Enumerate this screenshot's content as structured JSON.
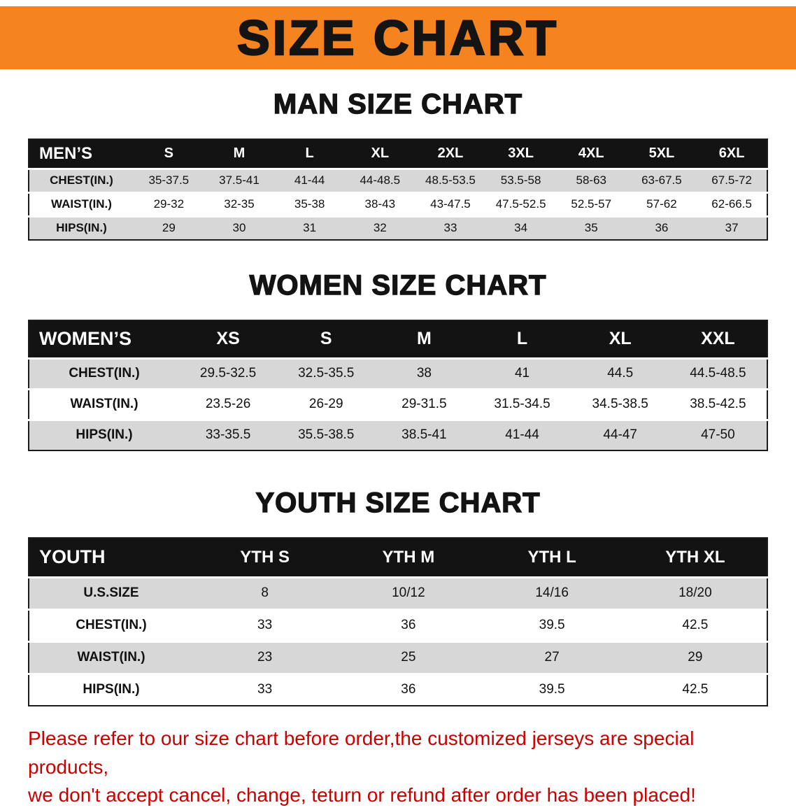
{
  "banner": {
    "title": "SIZE CHART"
  },
  "colors": {
    "banner_bg": "#f5831f",
    "header_bg": "#131313",
    "stripe": "#d7d7d7",
    "footer_red": "#c90000"
  },
  "men": {
    "heading": "MAN SIZE CHART",
    "label": "MEN’S",
    "columns": [
      "S",
      "M",
      "L",
      "XL",
      "2XL",
      "3XL",
      "4XL",
      "5XL",
      "6XL"
    ],
    "rows": [
      {
        "label": "CHEST(IN.)",
        "values": [
          "35-37.5",
          "37.5-41",
          "41-44",
          "44-48.5",
          "48.5-53.5",
          "53.5-58",
          "58-63",
          "63-67.5",
          "67.5-72"
        ]
      },
      {
        "label": "WAIST(IN.)",
        "values": [
          "29-32",
          "32-35",
          "35-38",
          "38-43",
          "43-47.5",
          "47.5-52.5",
          "52.5-57",
          "57-62",
          "62-66.5"
        ]
      },
      {
        "label": "HIPS(IN.)",
        "values": [
          "29",
          "30",
          "31",
          "32",
          "33",
          "34",
          "35",
          "36",
          "37"
        ]
      }
    ]
  },
  "women": {
    "heading": "WOMEN SIZE CHART",
    "label": "WOMEN’S",
    "columns": [
      "XS",
      "S",
      "M",
      "L",
      "XL",
      "XXL"
    ],
    "rows": [
      {
        "label": "CHEST(IN.)",
        "values": [
          "29.5-32.5",
          "32.5-35.5",
          "38",
          "41",
          "44.5",
          "44.5-48.5"
        ]
      },
      {
        "label": "WAIST(IN.)",
        "values": [
          "23.5-26",
          "26-29",
          "29-31.5",
          "31.5-34.5",
          "34.5-38.5",
          "38.5-42.5"
        ]
      },
      {
        "label": "HIPS(IN.)",
        "values": [
          "33-35.5",
          "35.5-38.5",
          "38.5-41",
          "41-44",
          "44-47",
          "47-50"
        ]
      }
    ]
  },
  "youth": {
    "heading": "YOUTH SIZE CHART",
    "label": "YOUTH",
    "columns": [
      "YTH S",
      "YTH M",
      "YTH L",
      "YTH XL"
    ],
    "rows": [
      {
        "label": "U.S.SIZE",
        "values": [
          "8",
          "10/12",
          "14/16",
          "18/20"
        ]
      },
      {
        "label": "CHEST(IN.)",
        "values": [
          "33",
          "36",
          "39.5",
          "42.5"
        ]
      },
      {
        "label": "WAIST(IN.)",
        "values": [
          "23",
          "25",
          "27",
          "29"
        ]
      },
      {
        "label": "HIPS(IN.)",
        "values": [
          "33",
          "36",
          "39.5",
          "42.5"
        ]
      }
    ]
  },
  "footer": {
    "line1": "Please refer to our size chart before order,the customized jerseys are special products,",
    "line2": "we don't accept cancel, change, teturn or refund after order has been placed!"
  }
}
